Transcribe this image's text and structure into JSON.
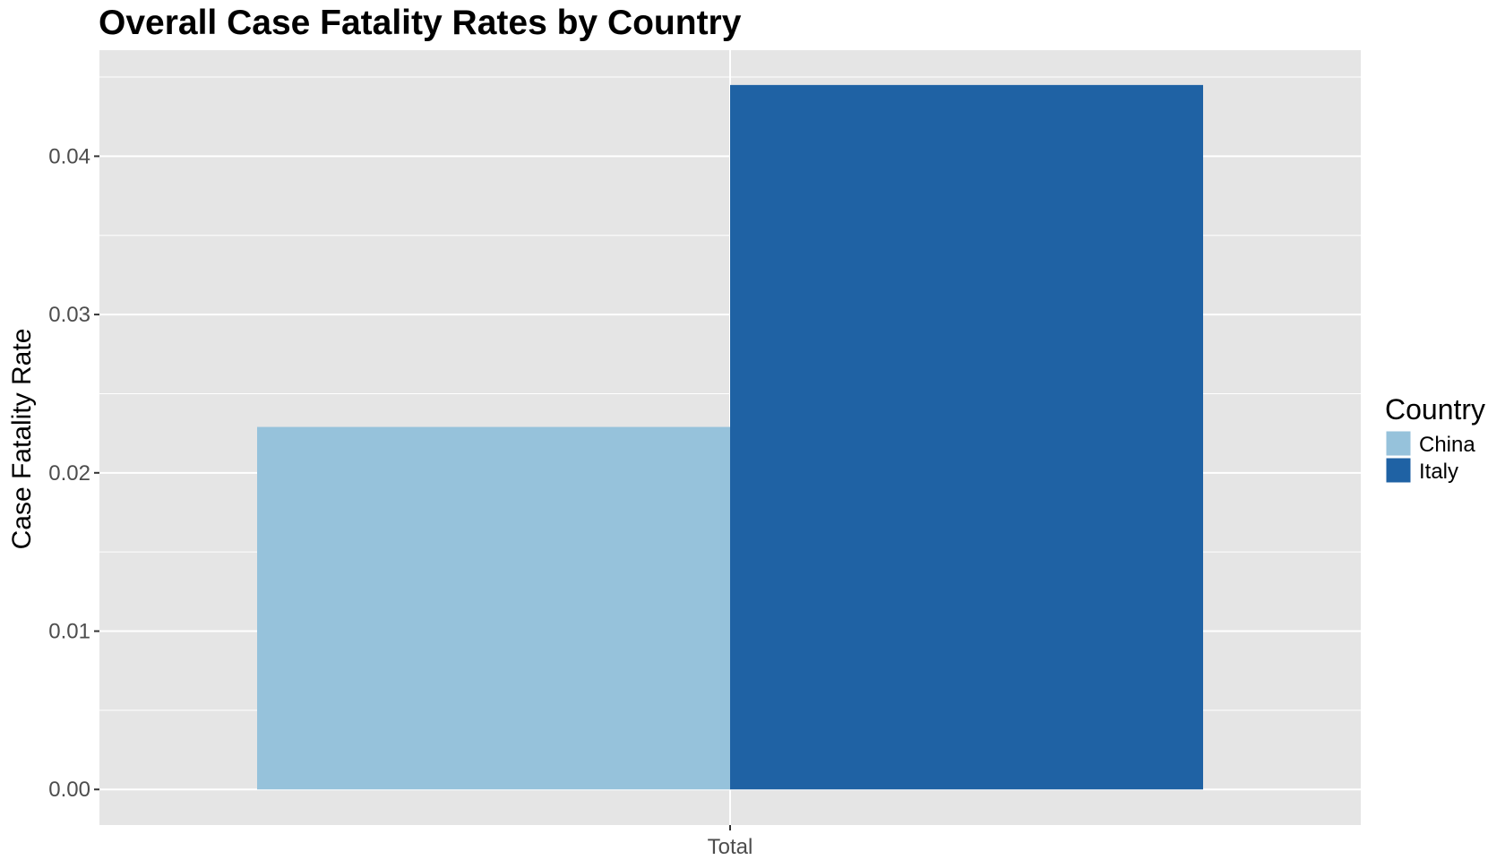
{
  "chart_data": {
    "type": "bar",
    "title": "Overall Case Fatality Rates by Country",
    "xlabel": "",
    "ylabel": "Case Fatality Rate",
    "categories": [
      "Total"
    ],
    "series": [
      {
        "name": "China",
        "values": [
          0.0229
        ],
        "color": "#96c2db"
      },
      {
        "name": "Italy",
        "values": [
          0.0445
        ],
        "color": "#1f62a4"
      }
    ],
    "ylim": [
      -0.00225,
      0.0467
    ],
    "yticks": [
      0,
      0.01,
      0.02,
      0.03,
      0.04
    ],
    "ytick_labels": [
      "0.00",
      "0.01",
      "0.02",
      "0.03",
      "0.04"
    ],
    "grid": true,
    "legend": {
      "title": "Country",
      "position": "right"
    },
    "colors": {
      "panel": "#e5e5e5",
      "grid": "#ffffff",
      "tick_text": "#4d4d4d"
    }
  }
}
